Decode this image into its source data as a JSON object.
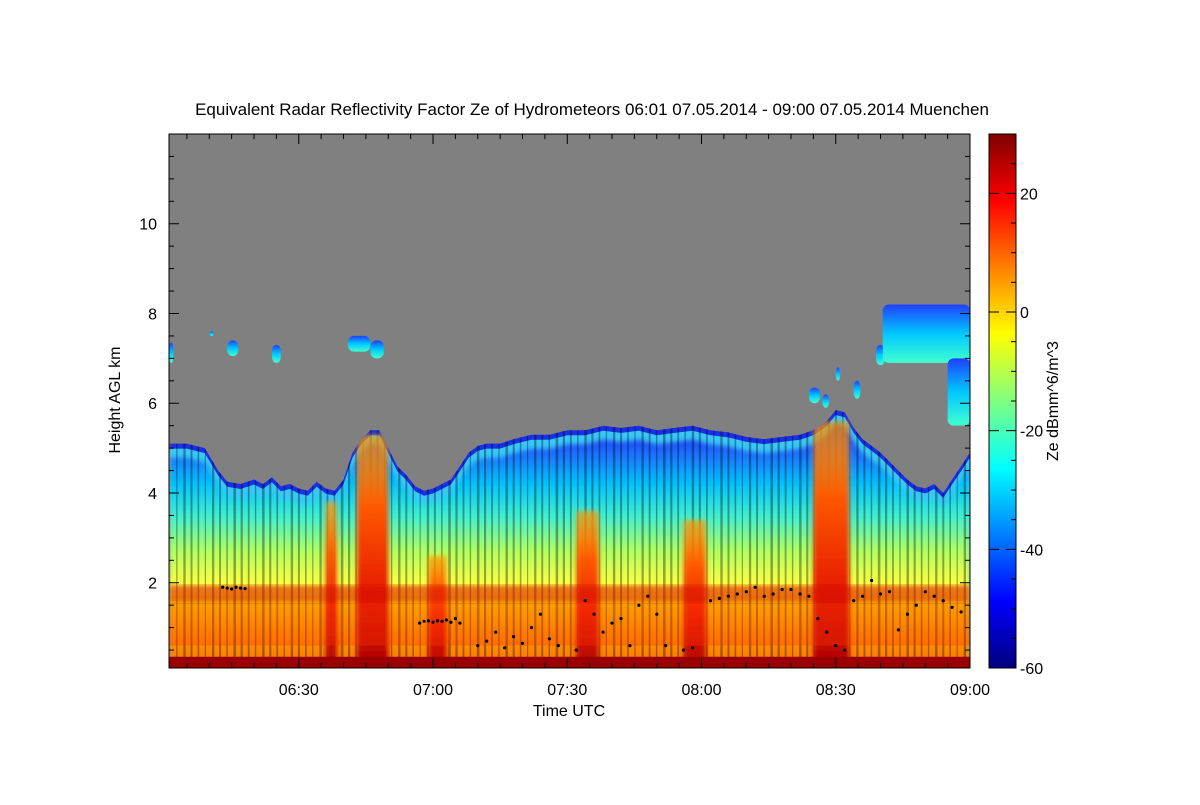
{
  "chart_data": {
    "type": "heatmap",
    "title": "Equivalent Radar Reflectivity Factor Ze of Hydrometeors   06:01 07.05.2014 - 09:00 07.05.2014 Muenchen",
    "xlabel": "Time UTC",
    "ylabel": "Height AGL km",
    "colorbar_label": "Ze dBmm^6/m^3",
    "x_range_minutes_utc": [
      361,
      540
    ],
    "y_range_km": [
      0.1,
      12.0
    ],
    "colorbar_range": [
      -60,
      30
    ],
    "x_ticks": [
      {
        "minute": 390,
        "label": "06:30"
      },
      {
        "minute": 420,
        "label": "07:00"
      },
      {
        "minute": 450,
        "label": "07:30"
      },
      {
        "minute": 480,
        "label": "08:00"
      },
      {
        "minute": 510,
        "label": "08:30"
      },
      {
        "minute": 540,
        "label": "09:00"
      }
    ],
    "y_ticks": [
      {
        "value": 2,
        "label": "2"
      },
      {
        "value": 4,
        "label": "4"
      },
      {
        "value": 6,
        "label": "6"
      },
      {
        "value": 8,
        "label": "8"
      },
      {
        "value": 10,
        "label": "10"
      }
    ],
    "colorbar_ticks": [
      {
        "value": 20,
        "label": "20"
      },
      {
        "value": 0,
        "label": "0"
      },
      {
        "value": -20,
        "label": "-20"
      },
      {
        "value": -40,
        "label": "-40"
      },
      {
        "value": -60,
        "label": "-60"
      }
    ],
    "no_data_color": "#808080",
    "colormap": [
      "#00007f",
      "#0000ff",
      "#0080ff",
      "#00ffff",
      "#80ff80",
      "#ffff00",
      "#ff8000",
      "#ff0000",
      "#7f0000"
    ],
    "cloud_top_km": [
      [
        361,
        5.1
      ],
      [
        365,
        5.1
      ],
      [
        369,
        5.0
      ],
      [
        372,
        4.5
      ],
      [
        374,
        4.25
      ],
      [
        377,
        4.2
      ],
      [
        380,
        4.3
      ],
      [
        382,
        4.2
      ],
      [
        384,
        4.35
      ],
      [
        386,
        4.15
      ],
      [
        388,
        4.2
      ],
      [
        390,
        4.1
      ],
      [
        392,
        4.05
      ],
      [
        394,
        4.25
      ],
      [
        396,
        4.1
      ],
      [
        398,
        4.05
      ],
      [
        400,
        4.3
      ],
      [
        402,
        4.9
      ],
      [
        404,
        5.2
      ],
      [
        406,
        5.4
      ],
      [
        408,
        5.4
      ],
      [
        410,
        5.0
      ],
      [
        412,
        4.6
      ],
      [
        414,
        4.4
      ],
      [
        416,
        4.15
      ],
      [
        418,
        4.05
      ],
      [
        420,
        4.1
      ],
      [
        422,
        4.2
      ],
      [
        424,
        4.3
      ],
      [
        426,
        4.6
      ],
      [
        428,
        4.9
      ],
      [
        430,
        5.05
      ],
      [
        432,
        5.1
      ],
      [
        435,
        5.1
      ],
      [
        438,
        5.2
      ],
      [
        442,
        5.3
      ],
      [
        446,
        5.3
      ],
      [
        450,
        5.4
      ],
      [
        454,
        5.4
      ],
      [
        458,
        5.5
      ],
      [
        462,
        5.45
      ],
      [
        466,
        5.5
      ],
      [
        470,
        5.4
      ],
      [
        474,
        5.45
      ],
      [
        478,
        5.5
      ],
      [
        482,
        5.4
      ],
      [
        486,
        5.35
      ],
      [
        490,
        5.25
      ],
      [
        494,
        5.2
      ],
      [
        498,
        5.25
      ],
      [
        502,
        5.3
      ],
      [
        505,
        5.4
      ],
      [
        508,
        5.6
      ],
      [
        510,
        5.85
      ],
      [
        512,
        5.8
      ],
      [
        514,
        5.45
      ],
      [
        516,
        5.2
      ],
      [
        518,
        5.05
      ],
      [
        520,
        4.9
      ],
      [
        522,
        4.7
      ],
      [
        524,
        4.5
      ],
      [
        526,
        4.3
      ],
      [
        528,
        4.15
      ],
      [
        530,
        4.1
      ],
      [
        532,
        4.2
      ],
      [
        534,
        4.0
      ],
      [
        536,
        4.3
      ],
      [
        538,
        4.6
      ],
      [
        540,
        4.9
      ]
    ],
    "upper_cloud_patches": [
      {
        "t0": 361,
        "t1": 362,
        "z0": 6.9,
        "z1": 7.35
      },
      {
        "t0": 370,
        "t1": 371,
        "z0": 7.5,
        "z1": 7.6
      },
      {
        "t0": 374,
        "t1": 376.5,
        "z0": 7.05,
        "z1": 7.4
      },
      {
        "t0": 384,
        "t1": 386,
        "z0": 6.9,
        "z1": 7.3
      },
      {
        "t0": 401,
        "t1": 406,
        "z0": 7.15,
        "z1": 7.5
      },
      {
        "t0": 406,
        "t1": 409,
        "z0": 7.0,
        "z1": 7.4
      },
      {
        "t0": 504,
        "t1": 506.5,
        "z0": 6.0,
        "z1": 6.35
      },
      {
        "t0": 507,
        "t1": 508.5,
        "z0": 5.9,
        "z1": 6.2
      },
      {
        "t0": 510,
        "t1": 511,
        "z0": 6.5,
        "z1": 6.8
      },
      {
        "t0": 514,
        "t1": 515.5,
        "z0": 6.1,
        "z1": 6.5
      },
      {
        "t0": 519,
        "t1": 521,
        "z0": 6.85,
        "z1": 7.3
      },
      {
        "t0": 520.5,
        "t1": 540,
        "z0": 6.9,
        "z1": 8.2
      },
      {
        "t0": 535,
        "t1": 540,
        "z0": 5.5,
        "z1": 7.0
      }
    ],
    "melting_layer_km": [
      1.55,
      1.95
    ],
    "surface_band_km": [
      0.15,
      0.35
    ],
    "intense_columns": [
      {
        "t0": 396,
        "t1": 398.5,
        "top": 3.8
      },
      {
        "t0": 403,
        "t1": 410,
        "top": 5.3
      },
      {
        "t0": 419,
        "t1": 423,
        "top": 2.6
      },
      {
        "t0": 452,
        "t1": 457,
        "top": 3.6
      },
      {
        "t0": 476,
        "t1": 481,
        "top": 3.4
      },
      {
        "t0": 505,
        "t1": 513,
        "top": 5.6
      }
    ],
    "cloud_base_km": [
      [
        373,
        1.9
      ],
      [
        374,
        1.88
      ],
      [
        375,
        1.86
      ],
      [
        376,
        1.9
      ],
      [
        377,
        1.88
      ],
      [
        378,
        1.87
      ],
      [
        417,
        1.1
      ],
      [
        418,
        1.14
      ],
      [
        419,
        1.15
      ],
      [
        420,
        1.12
      ],
      [
        421,
        1.15
      ],
      [
        422,
        1.14
      ],
      [
        423,
        1.17
      ],
      [
        424,
        1.12
      ],
      [
        425,
        1.2
      ],
      [
        426,
        1.1
      ],
      [
        430,
        0.6
      ],
      [
        432,
        0.7
      ],
      [
        434,
        0.9
      ],
      [
        436,
        0.55
      ],
      [
        438,
        0.8
      ],
      [
        440,
        0.65
      ],
      [
        442,
        1.0
      ],
      [
        444,
        1.3
      ],
      [
        446,
        0.75
      ],
      [
        448,
        0.6
      ],
      [
        452,
        0.5
      ],
      [
        454,
        1.6
      ],
      [
        456,
        1.3
      ],
      [
        458,
        0.9
      ],
      [
        460,
        1.1
      ],
      [
        462,
        1.2
      ],
      [
        464,
        0.6
      ],
      [
        466,
        1.5
      ],
      [
        468,
        1.7
      ],
      [
        470,
        1.3
      ],
      [
        472,
        0.6
      ],
      [
        476,
        0.5
      ],
      [
        478,
        0.55
      ],
      [
        482,
        1.6
      ],
      [
        484,
        1.65
      ],
      [
        486,
        1.7
      ],
      [
        488,
        1.75
      ],
      [
        490,
        1.8
      ],
      [
        492,
        1.9
      ],
      [
        494,
        1.7
      ],
      [
        496,
        1.75
      ],
      [
        498,
        1.85
      ],
      [
        500,
        1.85
      ],
      [
        502,
        1.75
      ],
      [
        504,
        1.7
      ],
      [
        506,
        1.2
      ],
      [
        508,
        0.9
      ],
      [
        510,
        0.6
      ],
      [
        512,
        0.5
      ],
      [
        514,
        1.6
      ],
      [
        516,
        1.7
      ],
      [
        518,
        2.05
      ],
      [
        520,
        1.75
      ],
      [
        522,
        1.8
      ],
      [
        524,
        0.95
      ],
      [
        526,
        1.3
      ],
      [
        528,
        1.5
      ],
      [
        530,
        1.8
      ],
      [
        532,
        1.7
      ],
      [
        534,
        1.6
      ],
      [
        536,
        1.45
      ],
      [
        538,
        1.35
      ]
    ]
  }
}
